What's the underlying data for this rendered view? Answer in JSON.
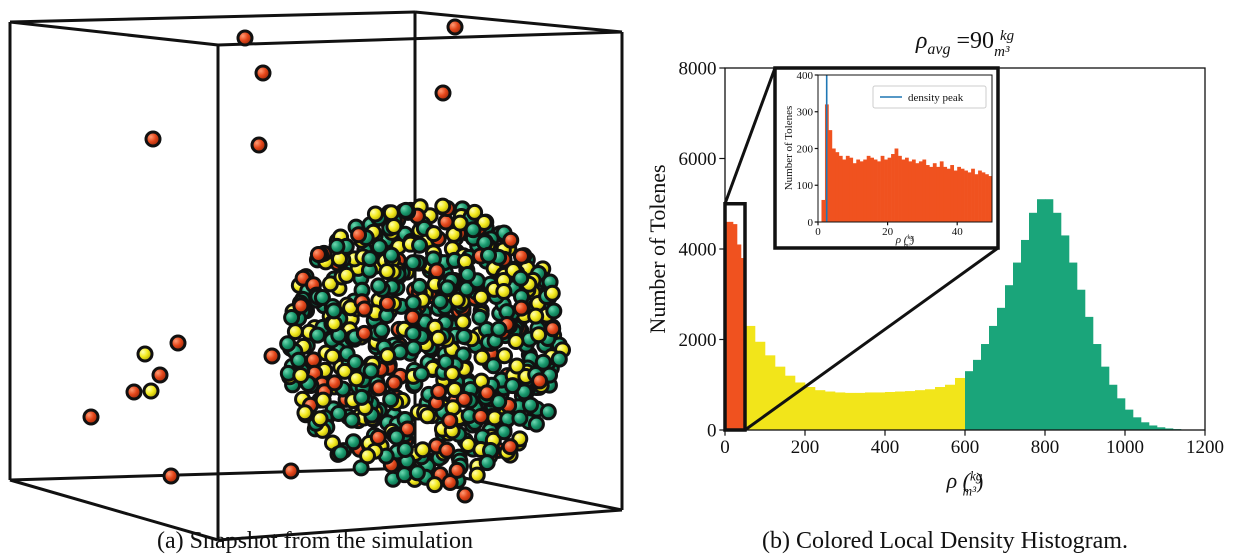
{
  "panels": [
    {
      "caption": "(a) Snapshot from the simulation"
    },
    {
      "caption": "(b) Colored Local Density Histogram."
    }
  ],
  "chart_data": {
    "type": "histogram",
    "title_parts": [
      "ρ",
      "avg",
      " =90 ",
      "kg",
      "m³"
    ],
    "xlabel_parts": [
      "ρ (",
      "kg",
      "m³",
      ")"
    ],
    "ylabel": "Number of Tolenes",
    "xlim": [
      0,
      1200
    ],
    "xticks": [
      0,
      200,
      400,
      600,
      800,
      1000,
      1200
    ],
    "ylim": [
      0,
      8000
    ],
    "yticks": [
      0,
      2000,
      4000,
      6000,
      8000
    ],
    "segments": [
      {
        "color": "#f0521f",
        "bins": [
          0,
          10,
          20,
          30,
          40,
          50
        ],
        "values": [
          4600,
          4600,
          4550,
          4100,
          3800
        ]
      },
      {
        "color": "#f2e51a",
        "bins": [
          50,
          75,
          100,
          125,
          150,
          175,
          200,
          225,
          250,
          275,
          300,
          325,
          350,
          375,
          400,
          425,
          450,
          475,
          500,
          525,
          550,
          575,
          600
        ],
        "values": [
          2300,
          1950,
          1650,
          1400,
          1200,
          1050,
          950,
          880,
          850,
          830,
          820,
          820,
          830,
          830,
          840,
          850,
          860,
          880,
          900,
          950,
          1000,
          1150
        ]
      },
      {
        "color": "#1aa57a",
        "bins": [
          600,
          620,
          640,
          660,
          680,
          700,
          720,
          740,
          760,
          780,
          800,
          820,
          840,
          860,
          880,
          900,
          920,
          940,
          960,
          980,
          1000,
          1020,
          1040,
          1060,
          1080,
          1100,
          1120,
          1140,
          1160,
          1180,
          1200
        ],
        "values": [
          1300,
          1550,
          1900,
          2300,
          2700,
          3200,
          3700,
          4200,
          4800,
          5100,
          5100,
          4800,
          4300,
          3700,
          3100,
          2500,
          1900,
          1400,
          1000,
          700,
          450,
          280,
          170,
          100,
          60,
          35,
          20,
          10,
          5,
          2
        ]
      }
    ],
    "zoom_box": {
      "xlim": [
        0,
        50
      ],
      "ylim": [
        0,
        5000
      ]
    },
    "inset": {
      "ylabel": "Number of Tolenes",
      "xlabel_parts": [
        "ρ (",
        "kg",
        "m³",
        ")"
      ],
      "xlim": [
        0,
        50
      ],
      "xticks": [
        0,
        20,
        40
      ],
      "ylim": [
        0,
        400
      ],
      "yticks": [
        0,
        100,
        200,
        300,
        400
      ],
      "color": "#f0521f",
      "bins": [
        0,
        1,
        2,
        3,
        4,
        5,
        6,
        7,
        8,
        9,
        10,
        11,
        12,
        13,
        14,
        15,
        16,
        17,
        18,
        19,
        20,
        21,
        22,
        23,
        24,
        25,
        26,
        27,
        28,
        29,
        30,
        31,
        32,
        33,
        34,
        35,
        36,
        37,
        38,
        39,
        40,
        41,
        42,
        43,
        44,
        45,
        46,
        47,
        48,
        49,
        50
      ],
      "values": [
        0,
        60,
        320,
        250,
        200,
        190,
        180,
        170,
        180,
        175,
        160,
        170,
        165,
        170,
        180,
        175,
        170,
        165,
        180,
        170,
        175,
        185,
        200,
        180,
        170,
        175,
        165,
        170,
        160,
        165,
        170,
        155,
        150,
        160,
        150,
        165,
        150,
        145,
        155,
        140,
        150,
        145,
        140,
        135,
        145,
        130,
        140,
        135,
        130,
        125
      ],
      "density_peak": {
        "x": 2.5,
        "label": "density peak",
        "color": "#1f77b4"
      }
    }
  }
}
